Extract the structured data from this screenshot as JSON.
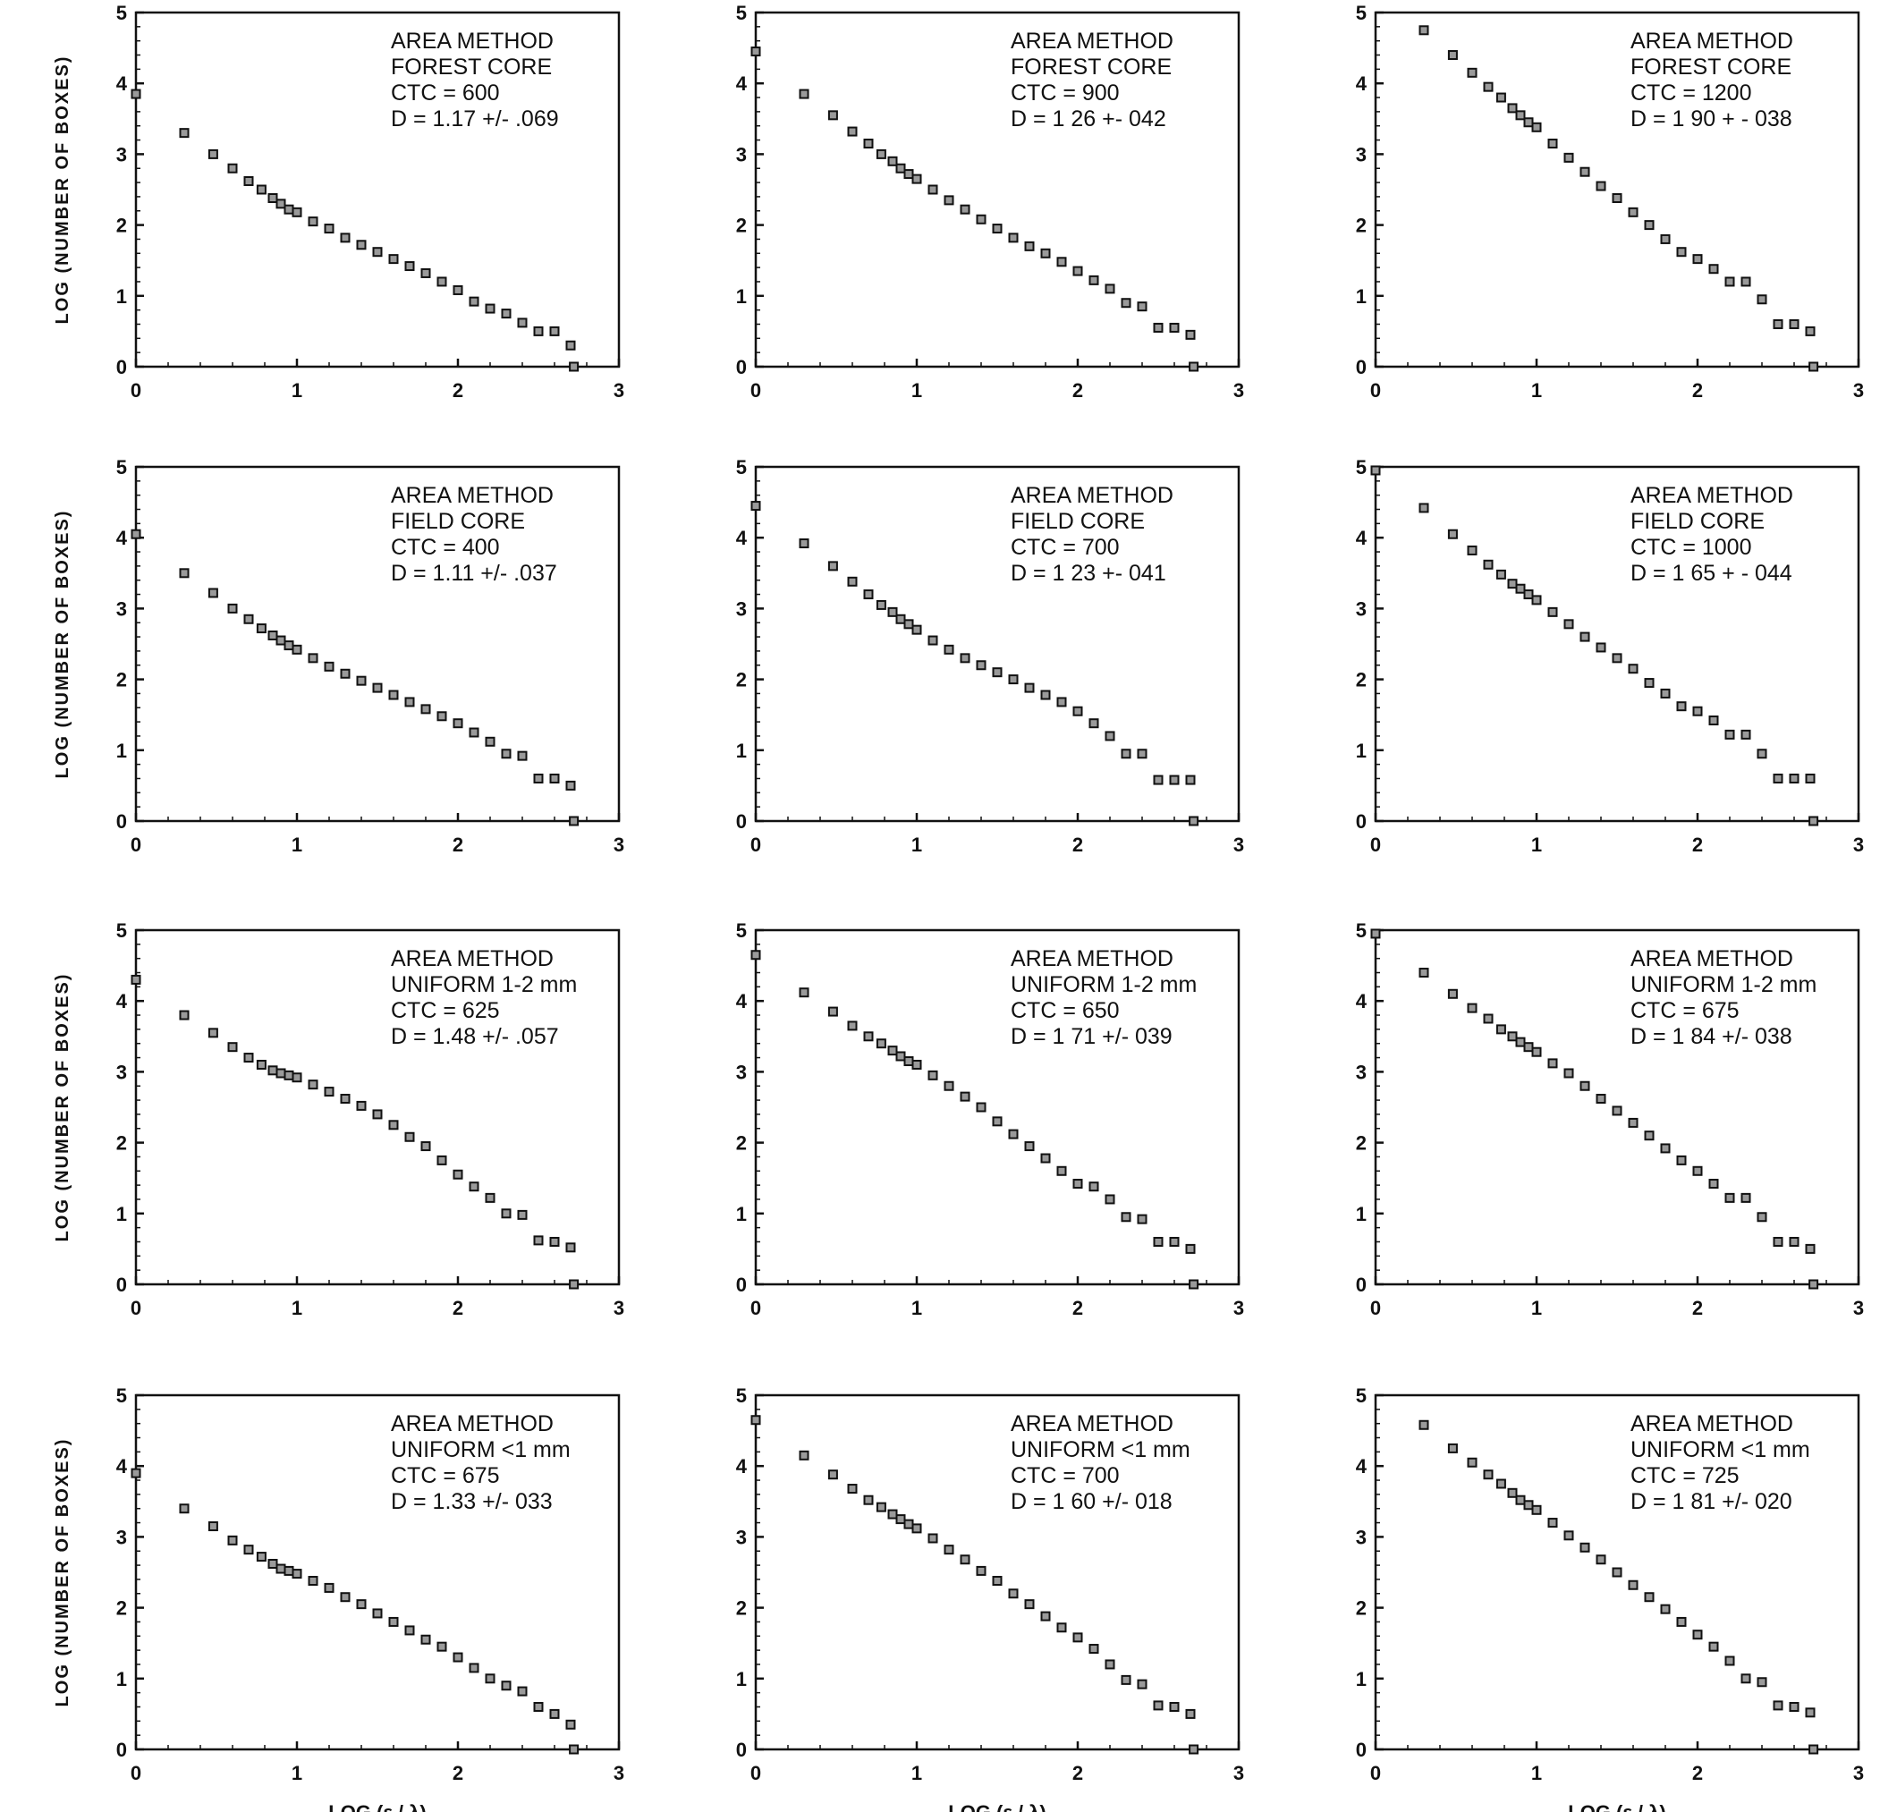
{
  "figure": {
    "ylabel": "LOG (NUMBER OF BOXES)",
    "xlabel": "LOG (ε / λ)"
  },
  "chart_data": [
    {
      "type": "scatter",
      "annotation": [
        "AREA METHOD",
        "FOREST CORE",
        "CTC = 600",
        "D = 1.17  +/-  .069"
      ],
      "xlim": [
        0,
        3
      ],
      "ylim": [
        0,
        5
      ],
      "x": [
        0,
        0.3,
        0.48,
        0.6,
        0.7,
        0.78,
        0.85,
        0.9,
        0.95,
        1.0,
        1.1,
        1.2,
        1.3,
        1.4,
        1.5,
        1.6,
        1.7,
        1.8,
        1.9,
        2.0,
        2.1,
        2.2,
        2.3,
        2.4,
        2.5,
        2.6,
        2.7,
        2.72
      ],
      "y": [
        3.85,
        3.3,
        3.0,
        2.8,
        2.62,
        2.5,
        2.38,
        2.3,
        2.22,
        2.18,
        2.05,
        1.95,
        1.82,
        1.72,
        1.62,
        1.52,
        1.42,
        1.32,
        1.2,
        1.08,
        0.92,
        0.82,
        0.75,
        0.62,
        0.5,
        0.5,
        0.3,
        0.0
      ]
    },
    {
      "type": "scatter",
      "annotation": [
        "AREA METHOD",
        "FOREST CORE",
        "CTC = 900",
        "D = 1 26  +-  042"
      ],
      "xlim": [
        0,
        3
      ],
      "ylim": [
        0,
        5
      ],
      "x": [
        0,
        0.3,
        0.48,
        0.6,
        0.7,
        0.78,
        0.85,
        0.9,
        0.95,
        1.0,
        1.1,
        1.2,
        1.3,
        1.4,
        1.5,
        1.6,
        1.7,
        1.8,
        1.9,
        2.0,
        2.1,
        2.2,
        2.3,
        2.4,
        2.5,
        2.6,
        2.7,
        2.72
      ],
      "y": [
        4.45,
        3.85,
        3.55,
        3.32,
        3.15,
        3.0,
        2.9,
        2.8,
        2.72,
        2.65,
        2.5,
        2.35,
        2.22,
        2.08,
        1.95,
        1.82,
        1.7,
        1.6,
        1.48,
        1.35,
        1.22,
        1.1,
        0.9,
        0.85,
        0.55,
        0.55,
        0.45,
        0.0
      ]
    },
    {
      "type": "scatter",
      "annotation": [
        "AREA METHOD",
        "FOREST CORE",
        "CTC = 1200",
        "D = 1 90  + -  038"
      ],
      "xlim": [
        0,
        3
      ],
      "ylim": [
        0,
        5
      ],
      "x": [
        0.3,
        0.48,
        0.6,
        0.7,
        0.78,
        0.85,
        0.9,
        0.95,
        1.0,
        1.1,
        1.2,
        1.3,
        1.4,
        1.5,
        1.6,
        1.7,
        1.8,
        1.9,
        2.0,
        2.1,
        2.2,
        2.3,
        2.4,
        2.5,
        2.6,
        2.7,
        2.72
      ],
      "y": [
        4.75,
        4.4,
        4.15,
        3.95,
        3.8,
        3.65,
        3.55,
        3.45,
        3.38,
        3.15,
        2.95,
        2.75,
        2.55,
        2.38,
        2.18,
        2.0,
        1.8,
        1.62,
        1.52,
        1.38,
        1.2,
        1.2,
        0.95,
        0.6,
        0.6,
        0.5,
        0.0
      ]
    },
    {
      "type": "scatter",
      "annotation": [
        "AREA METHOD",
        "FIELD CORE",
        "CTC = 400",
        "D = 1.11  +/-  .037"
      ],
      "xlim": [
        0,
        3
      ],
      "ylim": [
        0,
        5
      ],
      "x": [
        0,
        0.3,
        0.48,
        0.6,
        0.7,
        0.78,
        0.85,
        0.9,
        0.95,
        1.0,
        1.1,
        1.2,
        1.3,
        1.4,
        1.5,
        1.6,
        1.7,
        1.8,
        1.9,
        2.0,
        2.1,
        2.2,
        2.3,
        2.4,
        2.5,
        2.6,
        2.7,
        2.72
      ],
      "y": [
        4.05,
        3.5,
        3.22,
        3.0,
        2.85,
        2.72,
        2.62,
        2.55,
        2.48,
        2.42,
        2.3,
        2.18,
        2.08,
        1.98,
        1.88,
        1.78,
        1.68,
        1.58,
        1.48,
        1.38,
        1.25,
        1.12,
        0.95,
        0.92,
        0.6,
        0.6,
        0.5,
        0.0
      ]
    },
    {
      "type": "scatter",
      "annotation": [
        "AREA METHOD",
        "FIELD CORE",
        "CTC = 700",
        "D = 1 23  +-  041"
      ],
      "xlim": [
        0,
        3
      ],
      "ylim": [
        0,
        5
      ],
      "x": [
        0,
        0.3,
        0.48,
        0.6,
        0.7,
        0.78,
        0.85,
        0.9,
        0.95,
        1.0,
        1.1,
        1.2,
        1.3,
        1.4,
        1.5,
        1.6,
        1.7,
        1.8,
        1.9,
        2.0,
        2.1,
        2.2,
        2.3,
        2.4,
        2.5,
        2.6,
        2.7,
        2.72
      ],
      "y": [
        4.45,
        3.92,
        3.6,
        3.38,
        3.2,
        3.05,
        2.95,
        2.85,
        2.78,
        2.7,
        2.55,
        2.42,
        2.3,
        2.2,
        2.1,
        2.0,
        1.88,
        1.78,
        1.68,
        1.55,
        1.38,
        1.2,
        0.95,
        0.95,
        0.58,
        0.58,
        0.58,
        0.0
      ]
    },
    {
      "type": "scatter",
      "annotation": [
        "AREA METHOD",
        "FIELD CORE",
        "CTC = 1000",
        "D = 1 65  + -  044"
      ],
      "xlim": [
        0,
        3
      ],
      "ylim": [
        0,
        5
      ],
      "x": [
        0,
        0.3,
        0.48,
        0.6,
        0.7,
        0.78,
        0.85,
        0.9,
        0.95,
        1.0,
        1.1,
        1.2,
        1.3,
        1.4,
        1.5,
        1.6,
        1.7,
        1.8,
        1.9,
        2.0,
        2.1,
        2.2,
        2.3,
        2.4,
        2.5,
        2.6,
        2.7,
        2.72
      ],
      "y": [
        4.95,
        4.42,
        4.05,
        3.82,
        3.62,
        3.48,
        3.35,
        3.28,
        3.2,
        3.12,
        2.95,
        2.78,
        2.6,
        2.45,
        2.3,
        2.15,
        1.95,
        1.8,
        1.62,
        1.55,
        1.42,
        1.22,
        1.22,
        0.95,
        0.6,
        0.6,
        0.6,
        0.0
      ]
    },
    {
      "type": "scatter",
      "annotation": [
        "AREA METHOD",
        "UNIFORM 1-2 mm",
        "CTC = 625",
        "D = 1.48  +/-  .057"
      ],
      "xlim": [
        0,
        3
      ],
      "ylim": [
        0,
        5
      ],
      "x": [
        0,
        0.3,
        0.48,
        0.6,
        0.7,
        0.78,
        0.85,
        0.9,
        0.95,
        1.0,
        1.1,
        1.2,
        1.3,
        1.4,
        1.5,
        1.6,
        1.7,
        1.8,
        1.9,
        2.0,
        2.1,
        2.2,
        2.3,
        2.4,
        2.5,
        2.6,
        2.7,
        2.72
      ],
      "y": [
        4.3,
        3.8,
        3.55,
        3.35,
        3.2,
        3.1,
        3.02,
        2.98,
        2.95,
        2.92,
        2.82,
        2.72,
        2.62,
        2.52,
        2.4,
        2.25,
        2.08,
        1.95,
        1.75,
        1.55,
        1.38,
        1.22,
        1.0,
        0.98,
        0.62,
        0.6,
        0.52,
        0.0
      ]
    },
    {
      "type": "scatter",
      "annotation": [
        "AREA METHOD",
        "UNIFORM 1-2 mm",
        "CTC = 650",
        "D = 1 71  +/-  039"
      ],
      "xlim": [
        0,
        3
      ],
      "ylim": [
        0,
        5
      ],
      "x": [
        0,
        0.3,
        0.48,
        0.6,
        0.7,
        0.78,
        0.85,
        0.9,
        0.95,
        1.0,
        1.1,
        1.2,
        1.3,
        1.4,
        1.5,
        1.6,
        1.7,
        1.8,
        1.9,
        2.0,
        2.1,
        2.2,
        2.3,
        2.4,
        2.5,
        2.6,
        2.7,
        2.72
      ],
      "y": [
        4.65,
        4.12,
        3.85,
        3.65,
        3.5,
        3.4,
        3.3,
        3.22,
        3.15,
        3.1,
        2.95,
        2.8,
        2.65,
        2.5,
        2.3,
        2.12,
        1.95,
        1.78,
        1.6,
        1.42,
        1.38,
        1.2,
        0.95,
        0.92,
        0.6,
        0.6,
        0.5,
        0.0
      ]
    },
    {
      "type": "scatter",
      "annotation": [
        "AREA METHOD",
        "UNIFORM 1-2 mm",
        "CTC = 675",
        "D = 1 84  +/-  038"
      ],
      "xlim": [
        0,
        3
      ],
      "ylim": [
        0,
        5
      ],
      "x": [
        0,
        0.3,
        0.48,
        0.6,
        0.7,
        0.78,
        0.85,
        0.9,
        0.95,
        1.0,
        1.1,
        1.2,
        1.3,
        1.4,
        1.5,
        1.6,
        1.7,
        1.8,
        1.9,
        2.0,
        2.1,
        2.2,
        2.3,
        2.4,
        2.5,
        2.6,
        2.7,
        2.72
      ],
      "y": [
        4.95,
        4.4,
        4.1,
        3.9,
        3.75,
        3.6,
        3.5,
        3.42,
        3.35,
        3.28,
        3.12,
        2.98,
        2.8,
        2.62,
        2.45,
        2.28,
        2.1,
        1.92,
        1.75,
        1.6,
        1.42,
        1.22,
        1.22,
        0.95,
        0.6,
        0.6,
        0.5,
        0.0
      ]
    },
    {
      "type": "scatter",
      "annotation": [
        "AREA METHOD",
        "UNIFORM <1 mm",
        "CTC = 675",
        "D = 1.33  +/-  033"
      ],
      "xlim": [
        0,
        3
      ],
      "ylim": [
        0,
        5
      ],
      "x": [
        0,
        0.3,
        0.48,
        0.6,
        0.7,
        0.78,
        0.85,
        0.9,
        0.95,
        1.0,
        1.1,
        1.2,
        1.3,
        1.4,
        1.5,
        1.6,
        1.7,
        1.8,
        1.9,
        2.0,
        2.1,
        2.2,
        2.3,
        2.4,
        2.5,
        2.6,
        2.7,
        2.72
      ],
      "y": [
        3.9,
        3.4,
        3.15,
        2.95,
        2.82,
        2.72,
        2.62,
        2.55,
        2.52,
        2.48,
        2.38,
        2.28,
        2.15,
        2.05,
        1.92,
        1.8,
        1.68,
        1.55,
        1.45,
        1.3,
        1.15,
        1.0,
        0.9,
        0.82,
        0.6,
        0.5,
        0.35,
        0.0
      ]
    },
    {
      "type": "scatter",
      "annotation": [
        "AREA METHOD",
        "UNIFORM <1 mm",
        "CTC = 700",
        "D = 1 60  +/-  018"
      ],
      "xlim": [
        0,
        3
      ],
      "ylim": [
        0,
        5
      ],
      "x": [
        0,
        0.3,
        0.48,
        0.6,
        0.7,
        0.78,
        0.85,
        0.9,
        0.95,
        1.0,
        1.1,
        1.2,
        1.3,
        1.4,
        1.5,
        1.6,
        1.7,
        1.8,
        1.9,
        2.0,
        2.1,
        2.2,
        2.3,
        2.4,
        2.5,
        2.6,
        2.7,
        2.72
      ],
      "y": [
        4.65,
        4.15,
        3.88,
        3.68,
        3.52,
        3.42,
        3.32,
        3.25,
        3.18,
        3.12,
        2.98,
        2.82,
        2.68,
        2.52,
        2.38,
        2.2,
        2.05,
        1.88,
        1.72,
        1.58,
        1.42,
        1.2,
        0.98,
        0.92,
        0.62,
        0.6,
        0.5,
        0.0
      ]
    },
    {
      "type": "scatter",
      "annotation": [
        "AREA METHOD",
        "UNIFORM <1 mm",
        "CTC = 725",
        "D = 1 81  +/-  020"
      ],
      "xlim": [
        0,
        3
      ],
      "ylim": [
        0,
        5
      ],
      "x": [
        0.3,
        0.48,
        0.6,
        0.7,
        0.78,
        0.85,
        0.9,
        0.95,
        1.0,
        1.1,
        1.2,
        1.3,
        1.4,
        1.5,
        1.6,
        1.7,
        1.8,
        1.9,
        2.0,
        2.1,
        2.2,
        2.3,
        2.4,
        2.5,
        2.6,
        2.7,
        2.72
      ],
      "y": [
        4.58,
        4.25,
        4.05,
        3.88,
        3.75,
        3.62,
        3.52,
        3.45,
        3.38,
        3.2,
        3.02,
        2.85,
        2.68,
        2.5,
        2.32,
        2.15,
        1.98,
        1.8,
        1.62,
        1.45,
        1.25,
        1.0,
        0.95,
        0.62,
        0.6,
        0.52,
        0.0
      ]
    }
  ]
}
